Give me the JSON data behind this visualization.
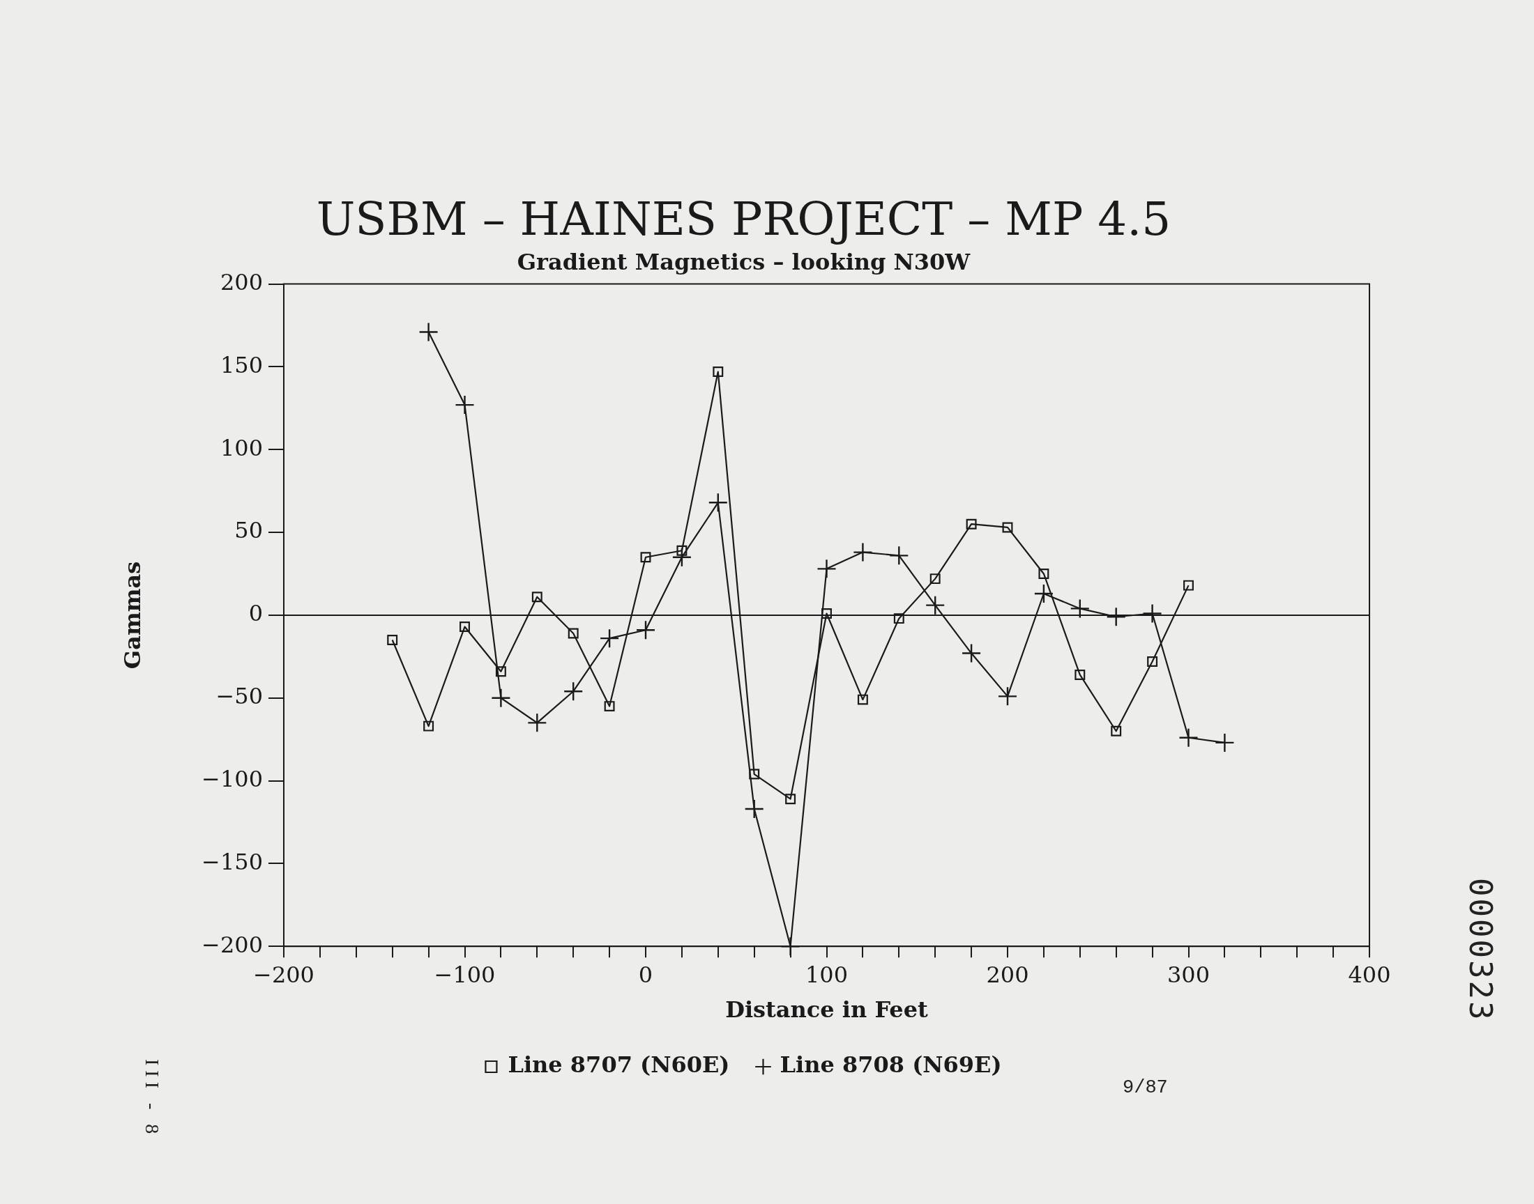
{
  "chart_data": {
    "type": "line",
    "title": "USBM – HAINES PROJECT – MP 4.5",
    "subtitle": "Gradient Magnetics – looking N30W",
    "xlabel": "Distance in Feet",
    "ylabel": "Gammas",
    "xlim": [
      -200,
      400
    ],
    "ylim": [
      -200,
      200
    ],
    "xticks": [
      -200,
      {
        "value": -180,
        "label": null
      },
      {
        "value": -160,
        "label": null
      },
      {
        "value": -140,
        "label": null
      },
      {
        "value": -120,
        "label": null
      },
      -100,
      {
        "value": -80,
        "label": null
      },
      {
        "value": -60,
        "label": null
      },
      {
        "value": -40,
        "label": null
      },
      {
        "value": -20,
        "label": null
      },
      0,
      {
        "value": 20,
        "label": null
      },
      {
        "value": 40,
        "label": null
      },
      {
        "value": 60,
        "label": null
      },
      {
        "value": 80,
        "label": null
      },
      100,
      {
        "value": 120,
        "label": null
      },
      {
        "value": 140,
        "label": null
      },
      {
        "value": 160,
        "label": null
      },
      {
        "value": 180,
        "label": null
      },
      200,
      {
        "value": 220,
        "label": null
      },
      {
        "value": 240,
        "label": null
      },
      {
        "value": 260,
        "label": null
      },
      {
        "value": 280,
        "label": null
      },
      300,
      {
        "value": 320,
        "label": null
      },
      {
        "value": 340,
        "label": null
      },
      {
        "value": 360,
        "label": null
      },
      {
        "value": 380,
        "label": null
      },
      400
    ],
    "yticks": [
      -200,
      -150,
      -100,
      -50,
      0,
      50,
      100,
      150,
      200
    ],
    "grid": false,
    "legend": "bottom",
    "line_style": "solid",
    "ref_lines": [
      {
        "axis": "y",
        "value": 0,
        "color": "#1a1a1a"
      }
    ],
    "annotations": [
      "9/87",
      "III - 8",
      "0000323"
    ],
    "series": [
      {
        "name": "Line 8707 (N60E)",
        "color": "#1a1a1a",
        "marker": "square",
        "x": [
          -140,
          -120,
          -100,
          -80,
          -60,
          -40,
          -20,
          0,
          20,
          40,
          60,
          80,
          100,
          120,
          140,
          160,
          180,
          200,
          220,
          240,
          260,
          280,
          300
        ],
        "values": [
          -15,
          -67,
          -7,
          -34,
          11,
          -11,
          -55,
          35,
          39,
          147,
          -96,
          -111,
          1,
          -51,
          -2,
          22,
          55,
          53,
          25,
          -36,
          -70,
          -28,
          18
        ]
      },
      {
        "name": "Line 8708 (N69E)",
        "color": "#1a1a1a",
        "marker": "cross",
        "x": [
          -120,
          -100,
          -80,
          -60,
          -40,
          -20,
          0,
          20,
          40,
          60,
          80,
          100,
          120,
          140,
          160,
          180,
          200,
          220,
          240,
          260,
          280,
          300,
          320
        ],
        "values": [
          171,
          127,
          -50,
          -65,
          -46,
          -14,
          -9,
          35,
          68,
          -117,
          -200,
          28,
          38,
          36,
          6,
          -23,
          -49,
          13,
          4,
          -1,
          1,
          -74,
          -77
        ]
      }
    ]
  }
}
